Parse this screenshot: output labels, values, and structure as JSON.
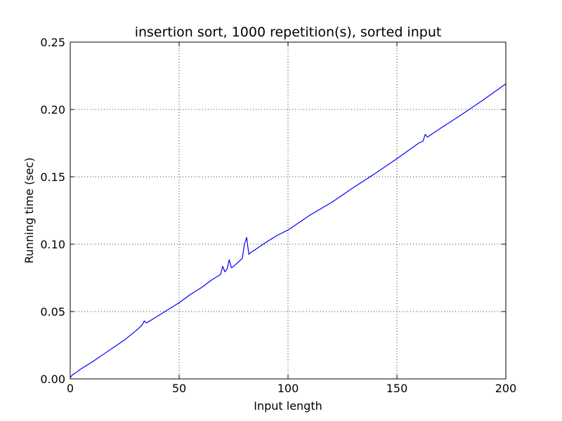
{
  "chart_data": {
    "type": "line",
    "title": "insertion sort, 1000 repetition(s), sorted input",
    "xlabel": "Input length",
    "ylabel": "Running time (sec)",
    "xlim": [
      0,
      200
    ],
    "ylim": [
      0,
      0.25
    ],
    "grid": true,
    "x_ticks": [
      0,
      50,
      100,
      150,
      200
    ],
    "x_tick_labels": [
      "0",
      "50",
      "100",
      "150",
      "200"
    ],
    "y_ticks": [
      0,
      0.05,
      0.1,
      0.15,
      0.2,
      0.25
    ],
    "y_tick_labels": [
      "0.00",
      "0.05",
      "0.10",
      "0.15",
      "0.20",
      "0.25"
    ],
    "series": [
      {
        "color": "#0000ff",
        "x": [
          0,
          1,
          2,
          5,
          10,
          15,
          20,
          25,
          30,
          33,
          34,
          35,
          40,
          45,
          50,
          55,
          60,
          65,
          68,
          69,
          70,
          71,
          72,
          73,
          74,
          75,
          78,
          79,
          80,
          81,
          82,
          83,
          85,
          90,
          95,
          100,
          110,
          120,
          130,
          140,
          150,
          160,
          162,
          163,
          164,
          170,
          180,
          190,
          200
        ],
        "y": [
          0.001,
          0.003,
          0.004,
          0.0075,
          0.0125,
          0.018,
          0.0235,
          0.029,
          0.0355,
          0.04,
          0.043,
          0.0415,
          0.0465,
          0.0515,
          0.0565,
          0.0625,
          0.0675,
          0.0735,
          0.0765,
          0.0775,
          0.0835,
          0.0795,
          0.0815,
          0.0885,
          0.0825,
          0.0835,
          0.088,
          0.0895,
          0.1,
          0.105,
          0.0925,
          0.094,
          0.096,
          0.1015,
          0.1065,
          0.1105,
          0.1215,
          0.131,
          0.142,
          0.1525,
          0.1635,
          0.175,
          0.1765,
          0.1815,
          0.1795,
          0.186,
          0.1965,
          0.2075,
          0.219
        ]
      }
    ]
  }
}
